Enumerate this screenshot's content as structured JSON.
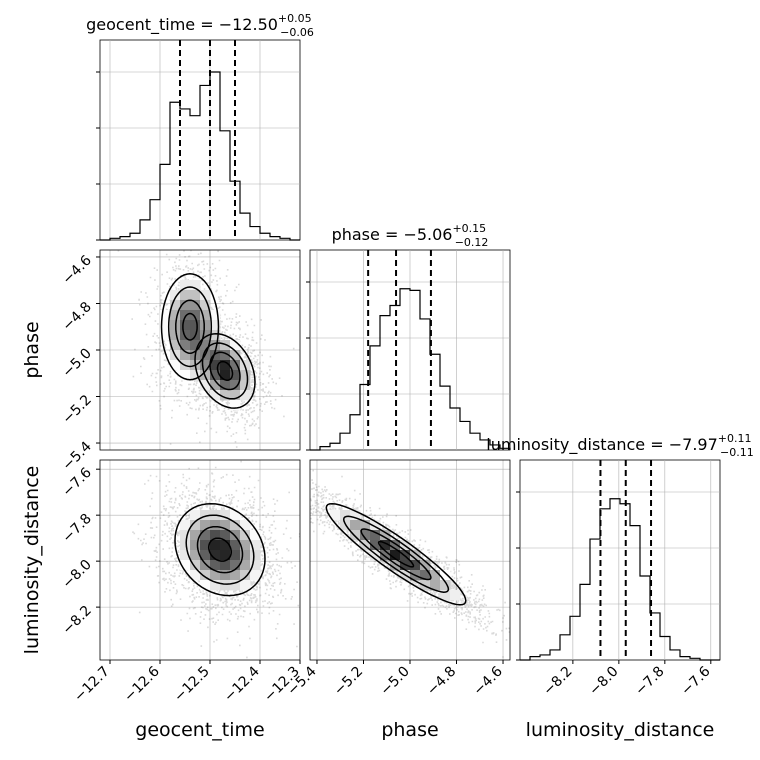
{
  "chart_data": {
    "type": "corner",
    "parameters": [
      "geocent_time",
      "phase",
      "luminosity_distance"
    ],
    "titles": {
      "geocent_time": {
        "name": "geocent_time",
        "median": "−12.50",
        "plus": "+0.05",
        "minus": "−0.06"
      },
      "phase": {
        "name": "phase",
        "median": "−5.06",
        "plus": "+0.15",
        "minus": "−0.12"
      },
      "luminosity_distance": {
        "name": "luminosity_distance",
        "median": "−7.97",
        "plus": "+0.11",
        "minus": "−0.11"
      }
    },
    "axis_labels": {
      "geocent_time": "geocent_time",
      "phase": "phase",
      "luminosity_distance": "luminosity_distance"
    },
    "ranges": {
      "geocent_time": [
        -12.72,
        -12.32
      ],
      "phase": [
        -5.43,
        -4.57
      ],
      "luminosity_distance": [
        -8.43,
        -7.56
      ]
    },
    "ticks": {
      "geocent_time": [
        {
          "v": -12.7,
          "label": "−12.7"
        },
        {
          "v": -12.6,
          "label": "−12.6"
        },
        {
          "v": -12.5,
          "label": "−12.5"
        },
        {
          "v": -12.4,
          "label": "−12.4"
        },
        {
          "v": -12.32,
          "label": "−12.3"
        }
      ],
      "phase": [
        {
          "v": -5.4,
          "label": "−5.4"
        },
        {
          "v": -5.2,
          "label": "−5.2"
        },
        {
          "v": -5.0,
          "label": "−5.0"
        },
        {
          "v": -4.8,
          "label": "−4.8"
        },
        {
          "v": -4.6,
          "label": "−4.6"
        }
      ],
      "luminosity_distance": [
        {
          "v": -8.2,
          "label": "−8.2"
        },
        {
          "v": -8.0,
          "label": "−8.0"
        },
        {
          "v": -7.8,
          "label": "−7.8"
        },
        {
          "v": -7.6,
          "label": "−7.6"
        }
      ]
    },
    "quantiles": {
      "geocent_time": [
        -12.56,
        -12.5,
        -12.45
      ],
      "phase": [
        -5.18,
        -5.06,
        -4.91
      ],
      "luminosity_distance": [
        -8.08,
        -7.97,
        -7.86
      ]
    },
    "histograms": {
      "geocent_time": [
        0.0,
        0.01,
        0.02,
        0.04,
        0.12,
        0.24,
        0.45,
        0.82,
        0.78,
        0.74,
        0.92,
        1.0,
        0.65,
        0.35,
        0.16,
        0.08,
        0.04,
        0.02,
        0.01,
        0.0
      ],
      "phase": [
        0.0,
        0.02,
        0.04,
        0.1,
        0.21,
        0.39,
        0.62,
        0.8,
        0.86,
        0.96,
        0.95,
        0.78,
        0.57,
        0.38,
        0.25,
        0.17,
        0.1,
        0.06,
        0.03,
        0.01
      ],
      "luminosity_distance": [
        0.0,
        0.02,
        0.03,
        0.06,
        0.15,
        0.26,
        0.45,
        0.72,
        0.9,
        0.96,
        0.93,
        0.8,
        0.5,
        0.28,
        0.14,
        0.06,
        0.02,
        0.01,
        0.0,
        0.0
      ]
    },
    "scatter_2d": [
      {
        "x": "geocent_time",
        "y": "phase",
        "modes": [
          {
            "cx": -12.54,
            "cy": -4.9,
            "sx": 0.03,
            "sy": 0.12,
            "rho": 0.0,
            "w": 0.45
          },
          {
            "cx": -12.47,
            "cy": -5.09,
            "sx": 0.03,
            "sy": 0.08,
            "rho": -0.3,
            "w": 0.55
          }
        ]
      },
      {
        "x": "geocent_time",
        "y": "luminosity_distance",
        "modes": [
          {
            "cx": -12.48,
            "cy": -7.95,
            "sx": 0.045,
            "sy": 0.1,
            "rho": -0.2,
            "w": 1.0
          }
        ]
      },
      {
        "x": "phase",
        "y": "luminosity_distance",
        "modes": [
          {
            "cx": -5.06,
            "cy": -7.97,
            "sx": 0.15,
            "sy": 0.11,
            "rho": -0.92,
            "w": 1.0
          }
        ]
      }
    ]
  }
}
